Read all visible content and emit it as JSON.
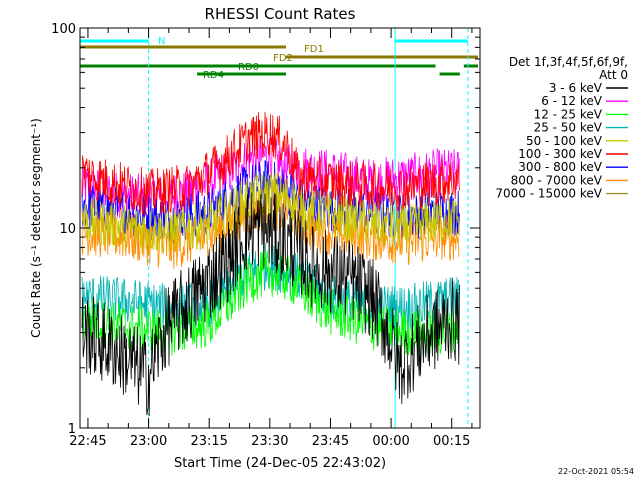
{
  "chart_data": {
    "type": "line",
    "title": "RHESSI Count Rates",
    "xlabel": "Start Time (24-Dec-05 22:43:02)",
    "ylabel": "Count Rate (s⁻¹ detector segment⁻¹)",
    "y_scale": "log",
    "ylim": [
      1,
      100
    ],
    "xlim": [
      "22:43:02",
      "00:22:00"
    ],
    "x_ticks": [
      "22:45",
      "23:00",
      "23:15",
      "23:30",
      "23:45",
      "00:00",
      "00:15"
    ],
    "y_ticks": [
      "1",
      "10",
      "100"
    ],
    "legend_title": "Det 1f,3f,4f,5f,6f,9f,",
    "legend_subtitle": "Att 0",
    "legend_position": "right",
    "timestamp": "22-Oct-2021 05:54",
    "series": [
      {
        "name": "3 - 6 keV",
        "color": "#000000",
        "x": [
          "22:44",
          "22:50",
          "22:55",
          "23:00",
          "23:05",
          "23:10",
          "23:15",
          "23:20",
          "23:25",
          "23:28",
          "23:32",
          "23:36",
          "23:40",
          "23:45",
          "23:50",
          "23:55",
          "00:02",
          "00:06",
          "00:10",
          "00:15",
          "00:19"
        ],
        "values": [
          3.0,
          2.6,
          2.2,
          1.8,
          3.3,
          4.2,
          5.5,
          7.0,
          10.0,
          10.0,
          9.0,
          8.0,
          6.5,
          6.0,
          5.5,
          4.5,
          2.0,
          2.5,
          3.0,
          3.5,
          3.0
        ]
      },
      {
        "name": "6 - 12 keV",
        "color": "#ff00ff",
        "x": [
          "22:44",
          "22:50",
          "23:00",
          "23:10",
          "23:20",
          "23:25",
          "23:30",
          "23:33",
          "23:37",
          "23:45",
          "23:55",
          "00:05",
          "00:12",
          "00:19"
        ],
        "values": [
          16,
          15,
          14,
          15,
          19,
          22,
          23,
          20,
          20,
          19,
          17,
          18,
          19,
          19
        ]
      },
      {
        "name": "12 - 25 keV",
        "color": "#00ff00",
        "x": [
          "22:44",
          "22:55",
          "23:05",
          "23:15",
          "23:20",
          "23:25",
          "23:30",
          "23:35",
          "23:40",
          "23:45",
          "23:55",
          "00:05",
          "00:12",
          "00:19"
        ],
        "values": [
          3.5,
          3.2,
          3.0,
          3.3,
          4.2,
          5.5,
          6.0,
          5.5,
          4.5,
          3.8,
          3.2,
          3.0,
          3.0,
          3.3
        ]
      },
      {
        "name": "25 - 50 keV",
        "color": "#00b4b4",
        "x": [
          "22:44",
          "22:55",
          "23:05",
          "23:15",
          "23:20",
          "23:25",
          "23:30",
          "23:35",
          "23:40",
          "23:45",
          "23:55",
          "00:05",
          "00:12",
          "00:19"
        ],
        "values": [
          4.5,
          4.3,
          4.0,
          4.2,
          5.0,
          6.0,
          6.5,
          6.0,
          5.2,
          4.5,
          4.0,
          4.0,
          4.3,
          4.5
        ]
      },
      {
        "name": "50 - 100 keV",
        "color": "#c8c800",
        "x": [
          "22:44",
          "22:55",
          "23:05",
          "23:15",
          "23:20",
          "23:25",
          "23:30",
          "23:35",
          "23:40",
          "23:45",
          "23:55",
          "00:05",
          "00:12",
          "00:19"
        ],
        "values": [
          11,
          10,
          9.5,
          10.5,
          12,
          14,
          15,
          14,
          12,
          11.5,
          10.5,
          10,
          11,
          11
        ]
      },
      {
        "name": "100 - 300 keV",
        "color": "#ff0000",
        "x": [
          "22:44",
          "22:50",
          "23:00",
          "23:10",
          "23:18",
          "23:25",
          "23:30",
          "23:34",
          "23:37",
          "23:45",
          "23:55",
          "00:05",
          "00:12",
          "00:19"
        ],
        "values": [
          19,
          17,
          15,
          16,
          21,
          28,
          30,
          26,
          18,
          17,
          16,
          16,
          17,
          18
        ]
      },
      {
        "name": "300 - 800 keV",
        "color": "#0000ff",
        "x": [
          "22:44",
          "22:55",
          "23:05",
          "23:15",
          "23:20",
          "23:25",
          "23:30",
          "23:35",
          "23:40",
          "23:45",
          "23:55",
          "00:05",
          "00:12",
          "00:19"
        ],
        "values": [
          13,
          12,
          11,
          12,
          14,
          16,
          17,
          15,
          13,
          12.5,
          12,
          11.5,
          12,
          12
        ]
      },
      {
        "name": "800 - 7000 keV",
        "color": "#ff8c00",
        "x": [
          "22:44",
          "22:55",
          "23:05",
          "23:15",
          "23:20",
          "23:25",
          "23:30",
          "23:35",
          "23:40",
          "23:45",
          "23:55",
          "00:05",
          "00:12",
          "00:19"
        ],
        "values": [
          9.5,
          9,
          8,
          9,
          10.5,
          12,
          13,
          12,
          10,
          9.5,
          9,
          8.5,
          9,
          9
        ]
      },
      {
        "name": "7000 - 15000 keV",
        "color": "#a08c28",
        "x": [],
        "values": []
      }
    ],
    "state_bars": [
      {
        "label": "N",
        "color": "#00ffff",
        "segments": [
          [
            "22:43",
            "23:00"
          ],
          [
            "00:01",
            "00:19"
          ]
        ]
      },
      {
        "label": "FD1",
        "color": "#8c7800",
        "segments": [
          [
            "22:43",
            "23:34"
          ]
        ]
      },
      {
        "label": "FD2",
        "color": "#8c7800",
        "segments": [
          [
            "23:34",
            "00:22"
          ]
        ]
      },
      {
        "label": "RD0",
        "color": "#008200",
        "segments": [
          [
            "22:43",
            "00:11"
          ],
          [
            "00:18",
            "00:22"
          ]
        ]
      },
      {
        "label": "RD4",
        "color": "#008200",
        "segments": [
          [
            "23:12",
            "23:34"
          ],
          [
            "00:12",
            "00:17"
          ]
        ]
      }
    ],
    "vlines": [
      {
        "time": "22:43:02",
        "color": "#00ffff",
        "style": "solid"
      },
      {
        "time": "23:00",
        "color": "#00ffff",
        "style": "dashed"
      },
      {
        "time": "00:01",
        "color": "#00ffff",
        "style": "solid"
      },
      {
        "time": "00:19",
        "color": "#00ffff",
        "style": "dashed"
      }
    ]
  }
}
